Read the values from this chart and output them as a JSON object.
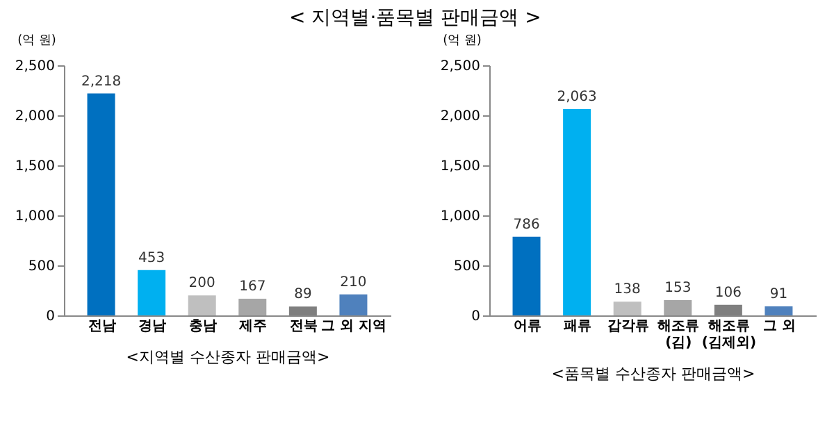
{
  "chart_data": [
    {
      "type": "bar",
      "title": "< 지역별·품목별 판매금액 >",
      "xlabel": "<지역별 수산종자 판매금액>",
      "ylabel": "(억 원)",
      "categories": [
        "전남",
        "경남",
        "충남",
        "제주",
        "전북",
        "그 외 지역"
      ],
      "values": [
        2218,
        453,
        200,
        167,
        89,
        210
      ],
      "value_labels": [
        "2,218",
        "453",
        "200",
        "167",
        "89",
        "210"
      ],
      "colors": [
        "#0070c0",
        "#00b0f0",
        "#bfbfbf",
        "#a6a6a6",
        "#7f7f7f",
        "#4f81bd"
      ],
      "ylim": [
        0,
        2500
      ],
      "yticks": [
        0,
        500,
        {
          "value": 1000,
          "label": "1,000"
        },
        {
          "value": 1500,
          "label": "1,500"
        },
        {
          "value": 2000,
          "label": "2,000"
        },
        {
          "value": 2500,
          "label": "2,500"
        }
      ],
      "grid": false
    },
    {
      "type": "bar",
      "xlabel": "<품목별 수산종자 판매금액>",
      "ylabel": "(억 원)",
      "categories": [
        "어류",
        "패류",
        "갑각류",
        "해조류\n(김)",
        "해조류\n(김제외)",
        "그 외"
      ],
      "values": [
        786,
        2063,
        138,
        153,
        106,
        91
      ],
      "value_labels": [
        "786",
        "2,063",
        "138",
        "153",
        "106",
        "91"
      ],
      "colors": [
        "#0070c0",
        "#00b0f0",
        "#bfbfbf",
        "#a6a6a6",
        "#7f7f7f",
        "#4f81bd"
      ],
      "ylim": [
        0,
        2500
      ],
      "yticks": [
        0,
        500,
        {
          "value": 1000,
          "label": "1,000"
        },
        {
          "value": 1500,
          "label": "1,500"
        },
        {
          "value": 2000,
          "label": "2,000"
        },
        {
          "value": 2500,
          "label": "2,500"
        }
      ],
      "grid": false
    }
  ]
}
